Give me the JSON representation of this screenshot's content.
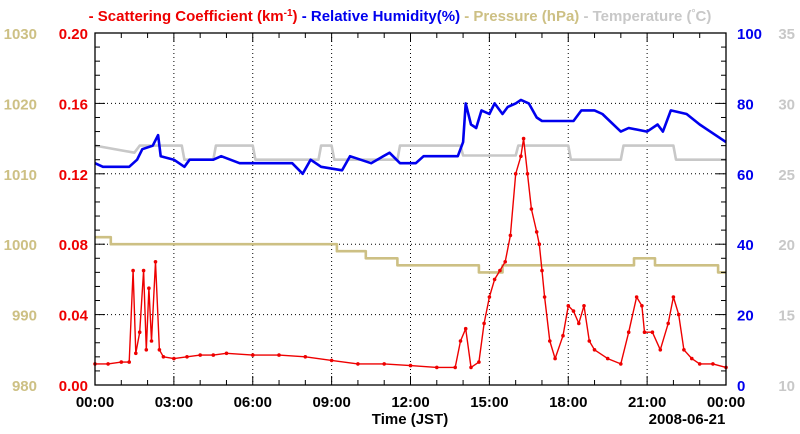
{
  "chart_data": {
    "type": "line",
    "xlabel": "Time (JST)",
    "date_label": "2008-06-21",
    "x_tick_labels": [
      "00:00",
      "03:00",
      "06:00",
      "09:00",
      "12:00",
      "15:00",
      "18:00",
      "21:00",
      "00:00"
    ],
    "x_range_hours": [
      0,
      24
    ],
    "grid": true,
    "legend": [
      {
        "dash": "-",
        "name": "Scattering Coefficient (km",
        "sup": "-1",
        "tail": ")",
        "color": "#ee0000"
      },
      {
        "dash": "-",
        "name": "Relative Humidity(%)",
        "sup": "",
        "tail": "",
        "color": "#0000ee"
      },
      {
        "dash": "-",
        "name": "Pressure (hPa)",
        "sup": "",
        "tail": "",
        "color": "#cdc084"
      },
      {
        "dash": "-",
        "name": "Temperature (",
        "sup": "°",
        "tail": "C)",
        "color": "#c8c8c8"
      }
    ],
    "axes": {
      "pressure": {
        "label_side": "outer-left",
        "ylim": [
          980,
          1030
        ],
        "ticks": [
          "980",
          "990",
          "1000",
          "1010",
          "1020",
          "1030"
        ],
        "color": "#cdc084"
      },
      "scattering": {
        "label_side": "inner-left",
        "ylim": [
          0,
          0.2
        ],
        "ticks": [
          "0.00",
          "0.04",
          "0.08",
          "0.12",
          "0.16",
          "0.20"
        ],
        "color": "#ee0000"
      },
      "humidity": {
        "label_side": "inner-right",
        "ylim": [
          0,
          100
        ],
        "ticks": [
          "0",
          "20",
          "40",
          "60",
          "80",
          "100"
        ],
        "color": "#0000ee"
      },
      "temperature": {
        "label_side": "outer-right",
        "ylim": [
          10,
          35
        ],
        "ticks": [
          "10",
          "15",
          "20",
          "25",
          "30",
          "35"
        ],
        "color": "#c8c8c8"
      }
    },
    "series": [
      {
        "name": "Temperature",
        "axis": "temperature",
        "color": "#c8c8c8",
        "step": true,
        "points": [
          [
            0,
            27
          ],
          [
            1.5,
            26.5
          ],
          [
            1.7,
            27
          ],
          [
            3.3,
            27
          ],
          [
            3.4,
            26
          ],
          [
            4.5,
            26
          ],
          [
            4.6,
            27
          ],
          [
            6,
            27
          ],
          [
            6.1,
            26
          ],
          [
            8.5,
            26
          ],
          [
            8.6,
            27
          ],
          [
            9,
            27
          ],
          [
            9.1,
            26
          ],
          [
            11.5,
            26
          ],
          [
            11.6,
            27
          ],
          [
            13.9,
            27
          ],
          [
            14,
            26.3
          ],
          [
            16,
            26.3
          ],
          [
            16.1,
            27
          ],
          [
            18,
            27
          ],
          [
            18.1,
            26
          ],
          [
            20,
            26
          ],
          [
            20.1,
            27
          ],
          [
            22,
            27
          ],
          [
            22.1,
            26
          ],
          [
            24,
            26
          ]
        ]
      },
      {
        "name": "Pressure",
        "axis": "pressure",
        "color": "#cdc084",
        "step": true,
        "points": [
          [
            0,
            1001
          ],
          [
            0.6,
            1001
          ],
          [
            0.6,
            1000
          ],
          [
            9.2,
            1000
          ],
          [
            9.2,
            999
          ],
          [
            10.3,
            999
          ],
          [
            10.3,
            998
          ],
          [
            11.5,
            998
          ],
          [
            11.5,
            997
          ],
          [
            14.6,
            997
          ],
          [
            14.6,
            996
          ],
          [
            15.5,
            996
          ],
          [
            15.5,
            997
          ],
          [
            20.5,
            997
          ],
          [
            20.5,
            998
          ],
          [
            21.3,
            998
          ],
          [
            21.3,
            997
          ],
          [
            23.7,
            997
          ],
          [
            23.7,
            996
          ],
          [
            24,
            996
          ]
        ]
      },
      {
        "name": "Relative Humidity",
        "axis": "humidity",
        "color": "#0000ee",
        "points": [
          [
            0,
            63
          ],
          [
            0.3,
            62
          ],
          [
            1.3,
            62
          ],
          [
            1.6,
            64
          ],
          [
            1.8,
            67
          ],
          [
            2.2,
            68
          ],
          [
            2.4,
            71
          ],
          [
            2.5,
            65
          ],
          [
            3.0,
            64
          ],
          [
            3.4,
            62
          ],
          [
            3.6,
            64
          ],
          [
            4.5,
            64
          ],
          [
            4.8,
            65
          ],
          [
            5.5,
            63
          ],
          [
            7.5,
            63
          ],
          [
            7.9,
            60
          ],
          [
            8.2,
            64
          ],
          [
            8.6,
            62
          ],
          [
            9.4,
            61
          ],
          [
            9.7,
            65
          ],
          [
            10.5,
            63
          ],
          [
            11.2,
            66
          ],
          [
            11.6,
            63
          ],
          [
            12.2,
            63
          ],
          [
            12.5,
            65
          ],
          [
            13.0,
            65
          ],
          [
            13.4,
            65
          ],
          [
            13.8,
            65
          ],
          [
            14.0,
            69
          ],
          [
            14.1,
            80
          ],
          [
            14.3,
            74
          ],
          [
            14.5,
            73
          ],
          [
            14.7,
            78
          ],
          [
            15.0,
            77
          ],
          [
            15.2,
            80
          ],
          [
            15.5,
            77
          ],
          [
            15.7,
            79
          ],
          [
            16.0,
            80
          ],
          [
            16.2,
            81
          ],
          [
            16.5,
            80
          ],
          [
            16.8,
            76
          ],
          [
            17.0,
            75
          ],
          [
            17.4,
            75
          ],
          [
            18.2,
            75
          ],
          [
            18.5,
            78
          ],
          [
            19.0,
            78
          ],
          [
            19.3,
            77
          ],
          [
            20.0,
            72
          ],
          [
            20.3,
            73
          ],
          [
            21.0,
            72
          ],
          [
            21.4,
            74
          ],
          [
            21.6,
            72
          ],
          [
            21.9,
            78
          ],
          [
            22.5,
            77
          ],
          [
            23.0,
            74
          ],
          [
            23.6,
            71
          ],
          [
            24.0,
            69
          ]
        ]
      },
      {
        "name": "Scattering Coefficient",
        "axis": "scattering",
        "color": "#ee0000",
        "markers": true,
        "points": [
          [
            0,
            0.012
          ],
          [
            0.5,
            0.012
          ],
          [
            1.0,
            0.013
          ],
          [
            1.3,
            0.013
          ],
          [
            1.45,
            0.065
          ],
          [
            1.55,
            0.018
          ],
          [
            1.7,
            0.03
          ],
          [
            1.85,
            0.065
          ],
          [
            1.95,
            0.02
          ],
          [
            2.05,
            0.055
          ],
          [
            2.15,
            0.025
          ],
          [
            2.3,
            0.07
          ],
          [
            2.45,
            0.02
          ],
          [
            2.6,
            0.016
          ],
          [
            3.0,
            0.015
          ],
          [
            3.5,
            0.016
          ],
          [
            4.0,
            0.017
          ],
          [
            4.5,
            0.017
          ],
          [
            5.0,
            0.018
          ],
          [
            6.0,
            0.017
          ],
          [
            7.0,
            0.017
          ],
          [
            8.0,
            0.016
          ],
          [
            9.0,
            0.014
          ],
          [
            10.0,
            0.012
          ],
          [
            11.0,
            0.012
          ],
          [
            12.0,
            0.011
          ],
          [
            13.0,
            0.01
          ],
          [
            13.7,
            0.01
          ],
          [
            13.9,
            0.025
          ],
          [
            14.1,
            0.032
          ],
          [
            14.3,
            0.01
          ],
          [
            14.6,
            0.013
          ],
          [
            14.8,
            0.035
          ],
          [
            15.0,
            0.05
          ],
          [
            15.2,
            0.06
          ],
          [
            15.4,
            0.065
          ],
          [
            15.6,
            0.07
          ],
          [
            15.8,
            0.085
          ],
          [
            16.0,
            0.12
          ],
          [
            16.2,
            0.13
          ],
          [
            16.3,
            0.14
          ],
          [
            16.45,
            0.12
          ],
          [
            16.6,
            0.1
          ],
          [
            16.8,
            0.087
          ],
          [
            16.9,
            0.08
          ],
          [
            17.0,
            0.065
          ],
          [
            17.1,
            0.05
          ],
          [
            17.3,
            0.025
          ],
          [
            17.5,
            0.015
          ],
          [
            17.8,
            0.028
          ],
          [
            18.0,
            0.045
          ],
          [
            18.2,
            0.042
          ],
          [
            18.4,
            0.035
          ],
          [
            18.6,
            0.045
          ],
          [
            18.8,
            0.025
          ],
          [
            19.0,
            0.02
          ],
          [
            19.5,
            0.015
          ],
          [
            20.0,
            0.012
          ],
          [
            20.3,
            0.03
          ],
          [
            20.6,
            0.05
          ],
          [
            20.8,
            0.045
          ],
          [
            20.9,
            0.03
          ],
          [
            21.2,
            0.03
          ],
          [
            21.5,
            0.02
          ],
          [
            21.8,
            0.035
          ],
          [
            22.0,
            0.05
          ],
          [
            22.2,
            0.04
          ],
          [
            22.4,
            0.02
          ],
          [
            22.7,
            0.015
          ],
          [
            23.0,
            0.012
          ],
          [
            23.5,
            0.012
          ],
          [
            24.0,
            0.01
          ]
        ]
      }
    ]
  }
}
